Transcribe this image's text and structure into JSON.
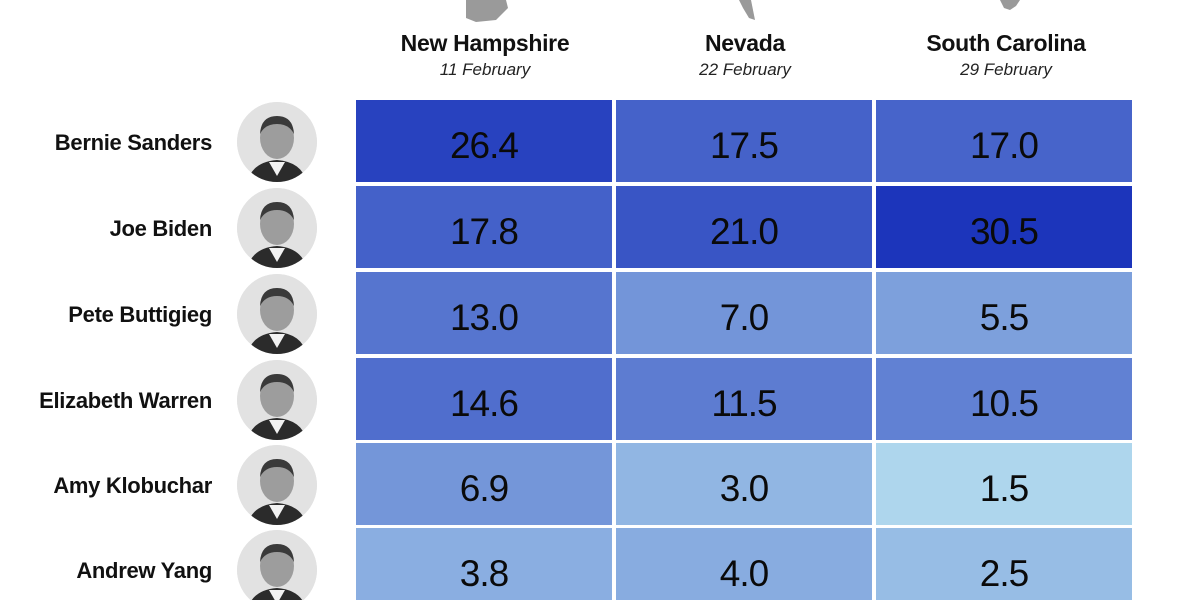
{
  "chart_data": {
    "type": "heatmap",
    "columns": [
      {
        "state": "New Hampshire",
        "date": "11 February"
      },
      {
        "state": "Nevada",
        "date": "22 February"
      },
      {
        "state": "South Carolina",
        "date": "29 February"
      }
    ],
    "rows": [
      {
        "candidate": "Bernie Sanders",
        "values": [
          26.4,
          17.5,
          17.0
        ],
        "display": [
          "26.4",
          "17.5",
          "17.0"
        ]
      },
      {
        "candidate": "Joe Biden",
        "values": [
          17.8,
          21.0,
          30.5
        ],
        "display": [
          "17.8",
          "21.0",
          "30.5"
        ]
      },
      {
        "candidate": "Pete Buttigieg",
        "values": [
          13.0,
          7.0,
          5.5
        ],
        "display": [
          "13.0",
          "7.0",
          "5.5"
        ]
      },
      {
        "candidate": "Elizabeth Warren",
        "values": [
          14.6,
          11.5,
          10.5
        ],
        "display": [
          "14.6",
          "11.5",
          "10.5"
        ]
      },
      {
        "candidate": "Amy Klobuchar",
        "values": [
          6.9,
          3.0,
          1.5
        ],
        "display": [
          "6.9",
          "3.0",
          "1.5"
        ]
      },
      {
        "candidate": "Andrew Yang",
        "values": [
          3.8,
          4.0,
          2.5
        ],
        "display": [
          "3.8",
          "4.0",
          "2.5"
        ]
      }
    ],
    "color_scale": {
      "low": "#aed6ed",
      "high": "#1c35bb"
    },
    "title": "",
    "legend": "none",
    "grid": false
  },
  "icons": {
    "state_shape": "state-outline-icon",
    "avatar": "candidate-photo-icon"
  }
}
